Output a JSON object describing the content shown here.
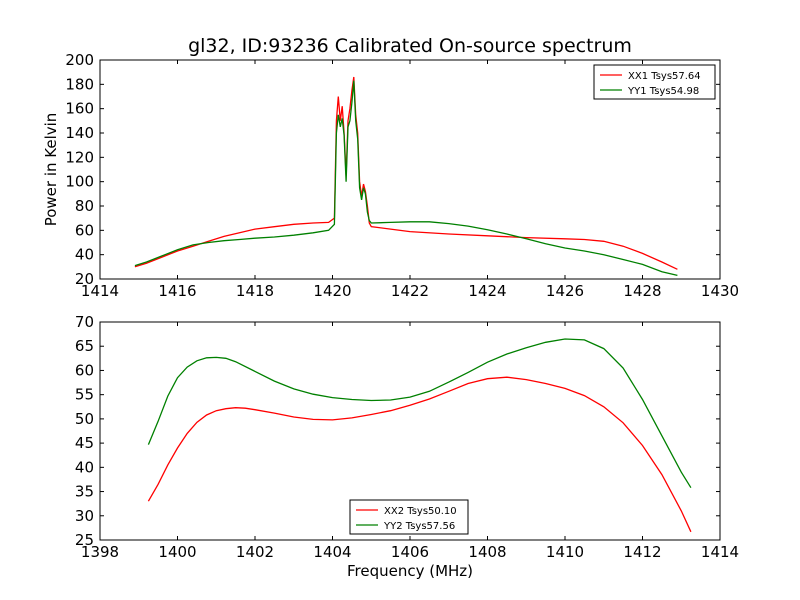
{
  "chart_data": [
    {
      "type": "line",
      "title": "gl32, ID:93236 Calibrated On-source spectrum",
      "xlabel": "",
      "ylabel": "Power in Kelvin",
      "xlim": [
        1414,
        1430
      ],
      "ylim": [
        20,
        200
      ],
      "xticks": [
        1414,
        1416,
        1418,
        1420,
        1422,
        1424,
        1426,
        1428,
        1430
      ],
      "yticks": [
        20,
        40,
        60,
        80,
        100,
        120,
        140,
        160,
        180,
        200
      ],
      "grid": false,
      "legend_position": "top-right",
      "series": [
        {
          "name": "XX1 Tsys57.64",
          "color": "#ff0000",
          "points": [
            [
              1414.9,
              30
            ],
            [
              1415.2,
              33
            ],
            [
              1415.6,
              38
            ],
            [
              1416.0,
              43
            ],
            [
              1416.4,
              47
            ],
            [
              1416.8,
              51
            ],
            [
              1417.2,
              55
            ],
            [
              1417.6,
              58
            ],
            [
              1418.0,
              61
            ],
            [
              1418.5,
              63
            ],
            [
              1419.0,
              65
            ],
            [
              1419.5,
              66
            ],
            [
              1419.9,
              66.5
            ],
            [
              1420.05,
              70
            ],
            [
              1420.1,
              150
            ],
            [
              1420.15,
              170
            ],
            [
              1420.2,
              150
            ],
            [
              1420.25,
              162
            ],
            [
              1420.3,
              140
            ],
            [
              1420.35,
              105
            ],
            [
              1420.4,
              150
            ],
            [
              1420.45,
              160
            ],
            [
              1420.5,
              175
            ],
            [
              1420.55,
              186
            ],
            [
              1420.6,
              155
            ],
            [
              1420.65,
              140
            ],
            [
              1420.7,
              100
            ],
            [
              1420.75,
              88
            ],
            [
              1420.8,
              98
            ],
            [
              1420.85,
              92
            ],
            [
              1420.9,
              80
            ],
            [
              1420.95,
              66
            ],
            [
              1421.0,
              63
            ],
            [
              1421.5,
              61
            ],
            [
              1422.0,
              59
            ],
            [
              1423.0,
              57
            ],
            [
              1424.0,
              55.5
            ],
            [
              1425.0,
              54
            ],
            [
              1426.0,
              53
            ],
            [
              1426.5,
              52.5
            ],
            [
              1427.0,
              51
            ],
            [
              1427.5,
              47
            ],
            [
              1428.0,
              41
            ],
            [
              1428.5,
              34
            ],
            [
              1428.9,
              28
            ]
          ]
        },
        {
          "name": "YY1 Tsys54.98",
          "color": "#008000",
          "points": [
            [
              1414.9,
              31
            ],
            [
              1415.2,
              34
            ],
            [
              1415.6,
              39
            ],
            [
              1416.0,
              44
            ],
            [
              1416.4,
              48
            ],
            [
              1416.8,
              50
            ],
            [
              1417.2,
              51.5
            ],
            [
              1417.6,
              52.5
            ],
            [
              1418.0,
              53.5
            ],
            [
              1418.5,
              54.5
            ],
            [
              1419.0,
              56
            ],
            [
              1419.5,
              58
            ],
            [
              1419.9,
              60
            ],
            [
              1420.05,
              65
            ],
            [
              1420.1,
              140
            ],
            [
              1420.15,
              155
            ],
            [
              1420.2,
              145
            ],
            [
              1420.25,
              152
            ],
            [
              1420.3,
              138
            ],
            [
              1420.35,
              100
            ],
            [
              1420.4,
              145
            ],
            [
              1420.45,
              150
            ],
            [
              1420.5,
              165
            ],
            [
              1420.55,
              183
            ],
            [
              1420.6,
              150
            ],
            [
              1420.65,
              135
            ],
            [
              1420.7,
              95
            ],
            [
              1420.75,
              85
            ],
            [
              1420.8,
              95
            ],
            [
              1420.85,
              90
            ],
            [
              1420.9,
              75
            ],
            [
              1420.95,
              68
            ],
            [
              1421.0,
              66
            ],
            [
              1421.5,
              66.5
            ],
            [
              1422.0,
              67
            ],
            [
              1422.5,
              67
            ],
            [
              1423.0,
              65.5
            ],
            [
              1423.5,
              63.5
            ],
            [
              1424.0,
              60.5
            ],
            [
              1424.5,
              57
            ],
            [
              1425.0,
              53
            ],
            [
              1425.5,
              49
            ],
            [
              1426.0,
              45.5
            ],
            [
              1426.5,
              43
            ],
            [
              1427.0,
              40
            ],
            [
              1427.5,
              36
            ],
            [
              1428.0,
              32
            ],
            [
              1428.5,
              26
            ],
            [
              1428.9,
              23
            ]
          ]
        }
      ]
    },
    {
      "type": "line",
      "title": "",
      "xlabel": "Frequency (MHz)",
      "ylabel": "",
      "xlim": [
        1398,
        1414
      ],
      "ylim": [
        25,
        70
      ],
      "xticks": [
        1398,
        1400,
        1402,
        1404,
        1406,
        1408,
        1410,
        1412,
        1414
      ],
      "yticks": [
        25,
        30,
        35,
        40,
        45,
        50,
        55,
        60,
        65,
        70
      ],
      "grid": false,
      "legend_position": "bottom-center",
      "series": [
        {
          "name": "XX2 Tsys50.10",
          "color": "#ff0000",
          "points": [
            [
              1399.25,
              33
            ],
            [
              1399.5,
              36.5
            ],
            [
              1399.75,
              40.5
            ],
            [
              1400.0,
              44
            ],
            [
              1400.25,
              47
            ],
            [
              1400.5,
              49.3
            ],
            [
              1400.75,
              50.8
            ],
            [
              1401.0,
              51.7
            ],
            [
              1401.25,
              52.1
            ],
            [
              1401.5,
              52.3
            ],
            [
              1401.75,
              52.2
            ],
            [
              1402.0,
              51.9
            ],
            [
              1402.5,
              51.2
            ],
            [
              1403.0,
              50.4
            ],
            [
              1403.5,
              49.9
            ],
            [
              1404.0,
              49.8
            ],
            [
              1404.5,
              50.2
            ],
            [
              1405.0,
              50.9
            ],
            [
              1405.5,
              51.7
            ],
            [
              1406.0,
              52.8
            ],
            [
              1406.5,
              54.1
            ],
            [
              1407.0,
              55.7
            ],
            [
              1407.5,
              57.3
            ],
            [
              1408.0,
              58.3
            ],
            [
              1408.5,
              58.6
            ],
            [
              1409.0,
              58.1
            ],
            [
              1409.5,
              57.3
            ],
            [
              1410.0,
              56.3
            ],
            [
              1410.5,
              54.8
            ],
            [
              1411.0,
              52.5
            ],
            [
              1411.5,
              49.2
            ],
            [
              1412.0,
              44.5
            ],
            [
              1412.5,
              38.5
            ],
            [
              1413.0,
              31
            ],
            [
              1413.25,
              26.7
            ]
          ]
        },
        {
          "name": "YY2 Tsys57.56",
          "color": "#008000",
          "points": [
            [
              1399.25,
              44.7
            ],
            [
              1399.5,
              49.5
            ],
            [
              1399.75,
              54.7
            ],
            [
              1400.0,
              58.5
            ],
            [
              1400.25,
              60.7
            ],
            [
              1400.5,
              62
            ],
            [
              1400.75,
              62.6
            ],
            [
              1401.0,
              62.7
            ],
            [
              1401.25,
              62.5
            ],
            [
              1401.5,
              61.8
            ],
            [
              1402.0,
              59.8
            ],
            [
              1402.5,
              57.8
            ],
            [
              1403.0,
              56.2
            ],
            [
              1403.5,
              55.1
            ],
            [
              1404.0,
              54.4
            ],
            [
              1404.5,
              54
            ],
            [
              1405.0,
              53.8
            ],
            [
              1405.5,
              53.9
            ],
            [
              1406.0,
              54.5
            ],
            [
              1406.5,
              55.7
            ],
            [
              1407.0,
              57.6
            ],
            [
              1407.5,
              59.6
            ],
            [
              1408.0,
              61.7
            ],
            [
              1408.5,
              63.4
            ],
            [
              1409.0,
              64.7
            ],
            [
              1409.5,
              65.8
            ],
            [
              1410.0,
              66.5
            ],
            [
              1410.5,
              66.3
            ],
            [
              1411.0,
              64.5
            ],
            [
              1411.5,
              60.5
            ],
            [
              1412.0,
              54
            ],
            [
              1412.5,
              46.5
            ],
            [
              1413.0,
              39
            ],
            [
              1413.25,
              35.8
            ]
          ]
        }
      ]
    }
  ]
}
